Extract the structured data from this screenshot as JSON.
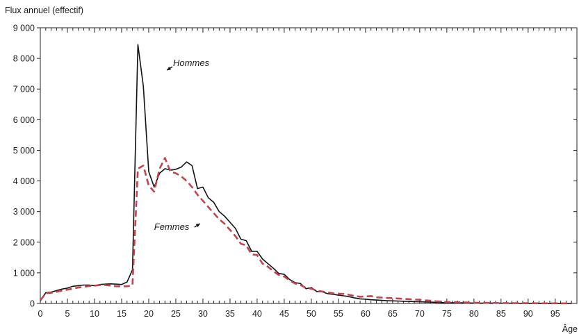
{
  "chart_data": {
    "type": "line",
    "ylabel": "Flux annuel (effectif)",
    "xlabel": "Âge",
    "xlim": [
      0,
      99
    ],
    "ylim": [
      0,
      9000
    ],
    "x_ticks": [
      0,
      5,
      10,
      15,
      20,
      25,
      30,
      35,
      40,
      45,
      50,
      55,
      60,
      65,
      70,
      75,
      80,
      85,
      90,
      95
    ],
    "x_tick_labels": [
      "0",
      "5",
      "10",
      "15",
      "20",
      "25",
      "30",
      "35",
      "40",
      "45",
      "50",
      "55",
      "60",
      "65",
      "70",
      "75",
      "80",
      "85",
      "90",
      "95"
    ],
    "y_ticks": [
      0,
      1000,
      2000,
      3000,
      4000,
      5000,
      6000,
      7000,
      8000,
      9000
    ],
    "y_tick_labels": [
      "0",
      "1 000",
      "2 000",
      "3 000",
      "4 000",
      "5 000",
      "6 000",
      "7 000",
      "8 000",
      "9 000"
    ],
    "grid": false,
    "series": [
      {
        "name": "Hommes",
        "color": "#111111",
        "dash": "solid",
        "x": [
          0,
          1,
          2,
          3,
          4,
          5,
          6,
          7,
          8,
          9,
          10,
          11,
          12,
          13,
          14,
          15,
          16,
          17,
          18,
          19,
          20,
          21,
          22,
          23,
          24,
          25,
          26,
          27,
          28,
          29,
          30,
          31,
          32,
          33,
          34,
          35,
          36,
          37,
          38,
          39,
          40,
          41,
          42,
          43,
          44,
          45,
          46,
          47,
          48,
          49,
          50,
          51,
          52,
          53,
          54,
          55,
          56,
          57,
          58,
          59,
          60,
          61,
          62,
          63,
          64,
          65,
          66,
          67,
          68,
          69,
          70,
          71,
          72,
          73,
          74,
          75,
          76,
          77,
          78,
          79,
          80,
          81,
          82,
          83,
          84,
          85,
          86,
          87,
          88,
          89,
          90,
          91,
          92,
          93,
          94,
          95,
          96,
          97,
          98
        ],
        "values": [
          80,
          350,
          370,
          420,
          470,
          500,
          560,
          580,
          600,
          600,
          580,
          620,
          630,
          640,
          630,
          620,
          700,
          1100,
          8450,
          7100,
          4300,
          3800,
          4250,
          4400,
          4350,
          4380,
          4450,
          4620,
          4500,
          3750,
          3800,
          3450,
          3300,
          3000,
          2850,
          2650,
          2450,
          2100,
          2050,
          1700,
          1700,
          1450,
          1300,
          1150,
          980,
          950,
          780,
          680,
          650,
          480,
          520,
          390,
          380,
          320,
          300,
          270,
          250,
          220,
          180,
          150,
          140,
          120,
          110,
          100,
          90,
          85,
          80,
          70,
          65,
          60,
          55,
          48,
          42,
          36,
          30,
          26,
          22,
          20,
          18,
          16,
          14,
          12,
          10,
          9,
          8,
          7,
          6,
          6,
          5,
          5,
          4,
          4,
          3,
          3,
          3,
          2,
          2,
          2,
          2
        ]
      },
      {
        "name": "Femmes",
        "color": "#c1444f",
        "dash": "dashed",
        "x": [
          0,
          1,
          2,
          3,
          4,
          5,
          6,
          7,
          8,
          9,
          10,
          11,
          12,
          13,
          14,
          15,
          16,
          17,
          18,
          19,
          20,
          21,
          22,
          23,
          24,
          25,
          26,
          27,
          28,
          29,
          30,
          31,
          32,
          33,
          34,
          35,
          36,
          37,
          38,
          39,
          40,
          41,
          42,
          43,
          44,
          45,
          46,
          47,
          48,
          49,
          50,
          51,
          52,
          53,
          54,
          55,
          56,
          57,
          58,
          59,
          60,
          61,
          62,
          63,
          64,
          65,
          66,
          67,
          68,
          69,
          70,
          71,
          72,
          73,
          74,
          75,
          76,
          77,
          78,
          79,
          80,
          81,
          82,
          83,
          84,
          85,
          86,
          87,
          88,
          89,
          90,
          91,
          92,
          93,
          94,
          95,
          96,
          97,
          98
        ],
        "values": [
          100,
          330,
          350,
          380,
          420,
          450,
          480,
          520,
          540,
          570,
          580,
          600,
          600,
          580,
          560,
          560,
          560,
          590,
          4400,
          4500,
          3850,
          3650,
          4400,
          4750,
          4300,
          4250,
          4150,
          4000,
          3800,
          3550,
          3350,
          3150,
          2950,
          2750,
          2600,
          2400,
          2200,
          1950,
          1900,
          1600,
          1580,
          1300,
          1200,
          1050,
          930,
          880,
          750,
          650,
          600,
          510,
          480,
          420,
          390,
          360,
          330,
          320,
          310,
          280,
          240,
          220,
          230,
          240,
          200,
          190,
          180,
          170,
          160,
          150,
          140,
          130,
          120,
          100,
          90,
          70,
          60,
          50,
          45,
          40,
          35,
          30,
          25,
          22,
          20,
          18,
          16,
          14,
          12,
          10,
          9,
          8,
          7,
          6,
          5,
          5,
          4,
          4,
          3,
          3,
          3
        ]
      }
    ],
    "annotations": [
      {
        "text": "Hommes",
        "x": 24.5,
        "y": 7750
      },
      {
        "text": "Femmes",
        "x": 21,
        "y": 2400
      }
    ]
  }
}
